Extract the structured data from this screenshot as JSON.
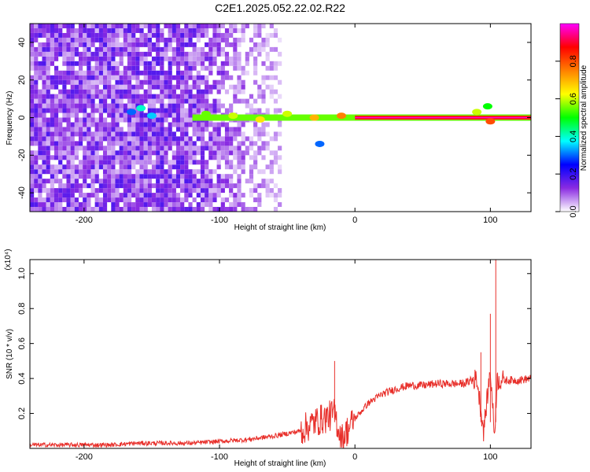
{
  "figure": {
    "title": "C2E1.2025.052.22.02.R22"
  },
  "chart_data": [
    {
      "type": "heatmap",
      "xlabel": "Height of straight line (km)",
      "ylabel": "Frequency (Hz)",
      "xlim": [
        -240,
        130
      ],
      "ylim": [
        -50,
        50
      ],
      "x_ticks": [
        -200,
        -100,
        0,
        100
      ],
      "x_tick_labels": [
        "-200",
        "-100",
        "0",
        "100"
      ],
      "y_ticks": [
        -40,
        -20,
        0,
        20,
        40
      ],
      "y_tick_labels": [
        "-40",
        "-20",
        "0",
        "20",
        "40"
      ],
      "colorbar": {
        "label": "Normalized spectral amplitude",
        "range": [
          0,
          1
        ],
        "ticks": [
          0.0,
          0.2,
          0.4,
          0.6,
          0.8
        ],
        "tick_labels": [
          "0.0",
          "0.2",
          "0.4",
          "0.6",
          "0.8"
        ],
        "colors": [
          "#ffffff",
          "#8a2be2",
          "#0000ff",
          "#00ffff",
          "#00ff00",
          "#ffff00",
          "#ff8000",
          "#ff0000",
          "#ff00ff"
        ]
      },
      "noise_region_x": [
        -240,
        -55
      ],
      "signal_line": {
        "start_x": -120,
        "end_x": 130,
        "frequency_hz": 0
      },
      "signal_points": [
        {
          "x": -165,
          "y": 3,
          "amplitude": 0.3
        },
        {
          "x": -158,
          "y": 5,
          "amplitude": 0.4
        },
        {
          "x": -150,
          "y": 1,
          "amplitude": 0.35
        },
        {
          "x": -110,
          "y": 2,
          "amplitude": 0.55
        },
        {
          "x": -90,
          "y": 1,
          "amplitude": 0.6
        },
        {
          "x": -70,
          "y": -1,
          "amplitude": 0.65
        },
        {
          "x": -50,
          "y": 2,
          "amplitude": 0.6
        },
        {
          "x": -30,
          "y": 0,
          "amplitude": 0.7
        },
        {
          "x": -26,
          "y": -14,
          "amplitude": 0.3
        },
        {
          "x": -10,
          "y": 1,
          "amplitude": 0.75
        },
        {
          "x": 90,
          "y": 3,
          "amplitude": 0.6
        },
        {
          "x": 98,
          "y": 6,
          "amplitude": 0.5
        },
        {
          "x": 100,
          "y": -2,
          "amplitude": 0.8
        }
      ]
    },
    {
      "type": "line",
      "xlabel": "Height of straight line (km)",
      "ylabel": "SNR (10 * v/v)",
      "multiplier": "(x10⁴)",
      "xlim": [
        -240,
        130
      ],
      "ylim": [
        0,
        1.08
      ],
      "x_ticks": [
        -200,
        -100,
        0,
        100
      ],
      "x_tick_labels": [
        "-200",
        "-100",
        "0",
        "100"
      ],
      "y_ticks": [
        0.2,
        0.4,
        0.6,
        0.8,
        1.0
      ],
      "y_tick_labels": [
        "0.2",
        "0.4",
        "0.6",
        "0.8",
        "1.0"
      ],
      "color": "#e8302b",
      "series": [
        {
          "x": [
            -240,
            -220,
            -200,
            -180,
            -160,
            -140,
            -120,
            -100,
            -80,
            -60,
            -40,
            -30,
            -20,
            -15,
            -10,
            0,
            10,
            20,
            30,
            40,
            50,
            60,
            70,
            80,
            90,
            95,
            100,
            103,
            105,
            110,
            120,
            130
          ],
          "y": [
            0.02,
            0.02,
            0.02,
            0.02,
            0.03,
            0.03,
            0.03,
            0.04,
            0.05,
            0.07,
            0.1,
            0.15,
            0.18,
            0.2,
            0.05,
            0.17,
            0.26,
            0.31,
            0.34,
            0.36,
            0.36,
            0.37,
            0.37,
            0.37,
            0.4,
            0.1,
            0.45,
            0.08,
            0.39,
            0.39,
            0.39,
            0.4
          ]
        }
      ],
      "spikes": [
        {
          "x": -15,
          "y": 0.5
        },
        {
          "x": 93,
          "y": 0.55
        },
        {
          "x": 100,
          "y": 0.77
        },
        {
          "x": 104,
          "y": 1.08
        }
      ]
    }
  ]
}
